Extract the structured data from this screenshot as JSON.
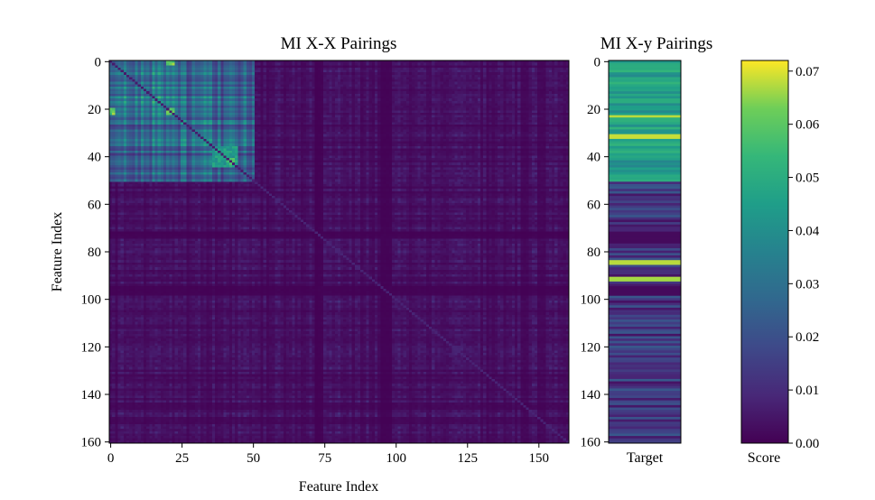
{
  "chart_data": [
    {
      "type": "heatmap",
      "title": "MI X-X Pairings",
      "xlabel": "Feature Index",
      "ylabel": "Feature Index",
      "n_features": 161,
      "xlim": [
        0,
        160
      ],
      "ylim": [
        160,
        0
      ],
      "xticks": [
        0,
        25,
        50,
        75,
        100,
        125,
        150
      ],
      "yticks": [
        0,
        20,
        40,
        60,
        80,
        100,
        120,
        140,
        160
      ],
      "structure": {
        "high_mi_block": [
          0,
          50
        ],
        "high_mi_subblock": [
          0,
          25
        ],
        "hot_spots": [
          {
            "i": 21,
            "j": 21,
            "value": 0.07
          },
          {
            "i": 42,
            "j": 42,
            "value": 0.06
          },
          {
            "i": 21,
            "j": 0,
            "value": 0.068
          }
        ],
        "block_typical_value": 0.028,
        "background_typical_value": 0.004,
        "low_rows": [
          72,
          73,
          74,
          95,
          96,
          97,
          98
        ],
        "diagonal_typical_value": 0.006
      }
    },
    {
      "type": "heatmap",
      "title": "MI X-y Pairings",
      "xlabel": "Target",
      "ylim": [
        160,
        0
      ],
      "yticks": [
        0,
        20,
        40,
        60,
        80,
        100,
        120,
        140,
        160
      ],
      "values_summary": {
        "rows_0_50_typical": 0.045,
        "bright_rows": [
          23,
          31,
          32,
          84,
          85,
          91,
          92
        ],
        "rows_51_160_typical": 0.012,
        "dark_bands": [
          [
            72,
            76
          ],
          [
            95,
            98
          ]
        ]
      }
    },
    {
      "type": "colorbar",
      "label": "Score",
      "colormap": "viridis",
      "vmin": 0.0,
      "vmax": 0.072,
      "ticks": [
        "0.00",
        "0.01",
        "0.02",
        "0.03",
        "0.04",
        "0.05",
        "0.06",
        "0.07"
      ]
    }
  ],
  "colors": {
    "low": "#440154",
    "mid": "#21918c",
    "high": "#fde725"
  }
}
